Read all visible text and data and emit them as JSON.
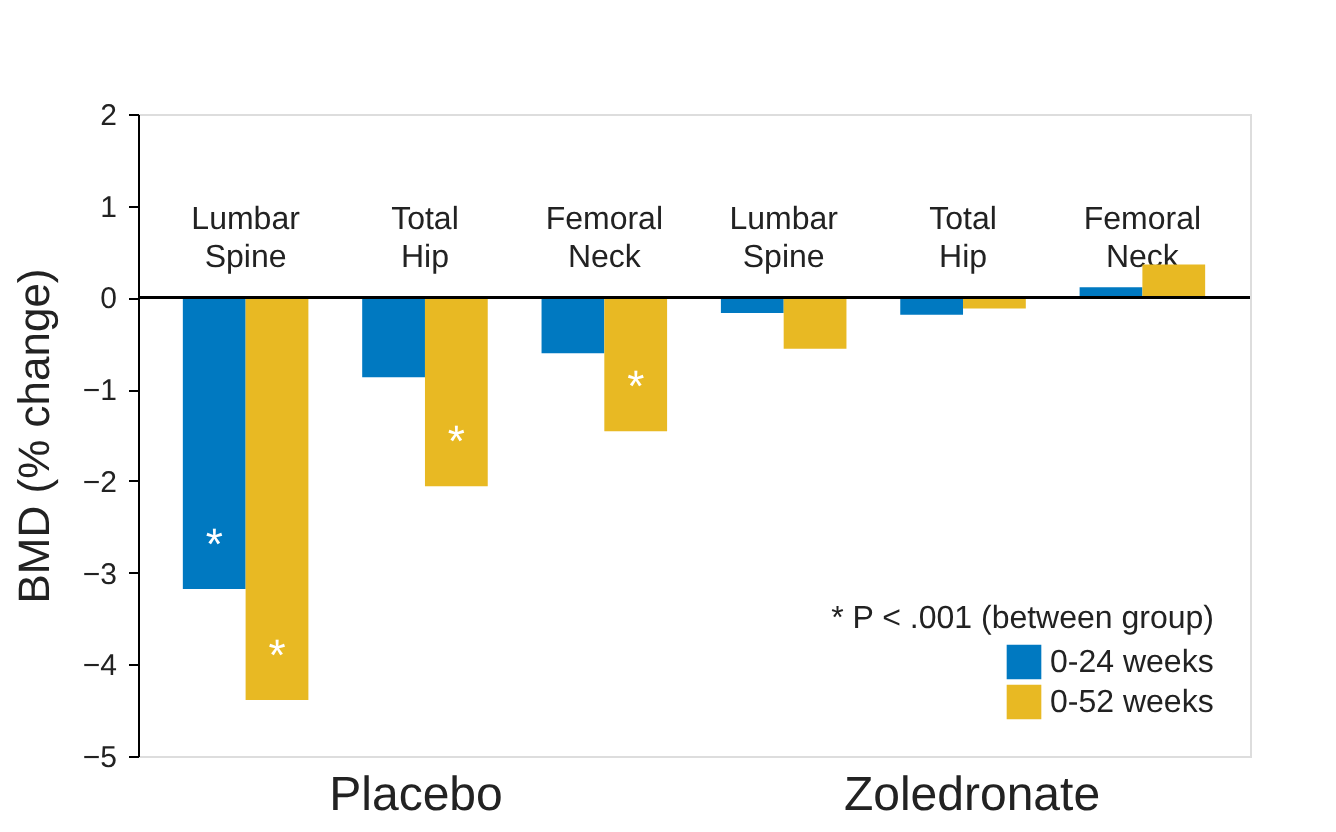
{
  "chart_data": {
    "type": "bar",
    "ylabel": "BMD (% change)",
    "legend_title": "* P < .001 (between group)",
    "categories": [
      "Lumbar Spine",
      "Total Hip",
      "Femoral Neck",
      "Lumbar Spine",
      "Total Hip",
      "Femoral Neck"
    ],
    "series": [
      {
        "name": "0-24 weeks",
        "color": "#0079c1",
        "values": [
          -3.18,
          -0.87,
          -0.61,
          -0.17,
          -0.19,
          0.11
        ],
        "value_labels": [
          "*",
          null,
          null,
          null,
          null,
          null
        ]
      },
      {
        "name": "0-52 weeks",
        "color": "#e8b923",
        "values": [
          -4.39,
          -2.06,
          -1.46,
          -0.56,
          -0.12,
          0.36
        ],
        "value_labels": [
          "*",
          "*",
          "*",
          null,
          null,
          null
        ]
      }
    ],
    "ylim": [
      -5,
      2
    ],
    "yticks": [
      -5,
      -4,
      -3,
      -2,
      -1,
      0,
      1,
      2
    ],
    "grid": false,
    "legend": "bottom right",
    "annotations": [
      "Placebo",
      "Zoledronate"
    ]
  }
}
